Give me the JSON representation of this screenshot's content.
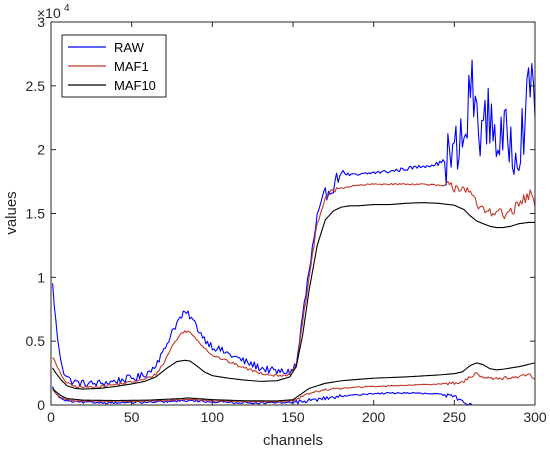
{
  "chart_data": {
    "type": "line",
    "xlabel": "channels",
    "ylabel": "values",
    "xlim": [
      0,
      300
    ],
    "ylim": [
      0,
      30000
    ],
    "xticks": [
      0,
      50,
      100,
      150,
      200,
      250,
      300
    ],
    "yticks": [
      0,
      5000,
      10000,
      15000,
      20000,
      25000,
      30000
    ],
    "xtick_labels": [
      "0",
      "50",
      "100",
      "150",
      "200",
      "250",
      "300"
    ],
    "ytick_labels": [
      "0",
      "0.5",
      "1",
      "1.5",
      "2",
      "2.5",
      "3"
    ],
    "y_multiplier": {
      "base": "×10",
      "exponent": "4"
    },
    "grid": false,
    "legend_position": "top-left",
    "legend": [
      "RAW",
      "MAF1",
      "MAF10"
    ],
    "colors": {
      "RAW": "#0000ff",
      "MAF1": "#c0392b",
      "MAF10": "#000000"
    },
    "series": [
      {
        "name": "RAW",
        "group": "upper",
        "noise": [
          300,
          150,
          2500
        ],
        "x": [
          1,
          3,
          5,
          8,
          12,
          18,
          25,
          35,
          45,
          55,
          62,
          70,
          75,
          80,
          83,
          86,
          90,
          95,
          100,
          110,
          120,
          130,
          140,
          148,
          152,
          155,
          160,
          165,
          170,
          175,
          180,
          185,
          190,
          200,
          210,
          220,
          230,
          240,
          248,
          252,
          256,
          258,
          260,
          262,
          264,
          268,
          272,
          276,
          280,
          284,
          288,
          292,
          296,
          298,
          300
        ],
        "y": [
          9400,
          6500,
          4200,
          2600,
          1900,
          1700,
          1650,
          1750,
          2000,
          2200,
          2700,
          4200,
          5800,
          6800,
          7200,
          7000,
          6200,
          5200,
          4600,
          4000,
          3400,
          2900,
          2600,
          2600,
          3000,
          6000,
          10500,
          14500,
          16500,
          17200,
          18300,
          18000,
          18000,
          18200,
          18300,
          18500,
          18700,
          18900,
          19400,
          19800,
          20800,
          22000,
          25500,
          24000,
          22500,
          21500,
          22800,
          21000,
          20500,
          21000,
          20200,
          21500,
          24000,
          26200,
          23800
        ]
      },
      {
        "name": "MAF1",
        "group": "upper",
        "noise": [
          100,
          60,
          450
        ],
        "x": [
          1,
          3,
          6,
          10,
          15,
          20,
          30,
          40,
          50,
          58,
          65,
          70,
          75,
          80,
          83,
          86,
          90,
          95,
          100,
          110,
          120,
          130,
          140,
          148,
          152,
          155,
          160,
          165,
          170,
          175,
          180,
          185,
          190,
          200,
          210,
          220,
          230,
          240,
          248,
          254,
          258,
          262,
          266,
          270,
          276,
          280,
          286,
          292,
          296,
          298,
          300
        ],
        "y": [
          3800,
          3200,
          2400,
          1700,
          1450,
          1400,
          1450,
          1600,
          1800,
          2000,
          2400,
          3300,
          4600,
          5500,
          5800,
          5700,
          5200,
          4500,
          3900,
          3400,
          2900,
          2500,
          2300,
          2400,
          3000,
          5500,
          10000,
          14200,
          16200,
          16800,
          17000,
          17100,
          17200,
          17300,
          17300,
          17300,
          17300,
          17200,
          17100,
          17100,
          17000,
          16000,
          15300,
          15200,
          15300,
          14800,
          15200,
          15900,
          16400,
          16500,
          15500
        ]
      },
      {
        "name": "MAF10",
        "group": "upper",
        "noise": [
          0,
          0,
          0
        ],
        "x": [
          1,
          3,
          6,
          10,
          15,
          20,
          30,
          40,
          50,
          58,
          65,
          72,
          78,
          83,
          86,
          90,
          95,
          100,
          110,
          120,
          130,
          140,
          148,
          152,
          156,
          160,
          165,
          170,
          175,
          180,
          185,
          190,
          200,
          210,
          220,
          230,
          240,
          250,
          256,
          260,
          264,
          268,
          272,
          276,
          280,
          285,
          290,
          296,
          300
        ],
        "y": [
          2900,
          2500,
          2000,
          1500,
          1300,
          1250,
          1300,
          1450,
          1650,
          1850,
          2200,
          2900,
          3400,
          3500,
          3450,
          3100,
          2600,
          2300,
          2100,
          1950,
          1850,
          1900,
          2200,
          3000,
          5500,
          9000,
          12500,
          14500,
          15200,
          15500,
          15600,
          15600,
          15700,
          15700,
          15800,
          15850,
          15800,
          15650,
          15300,
          14800,
          14400,
          14200,
          14000,
          13900,
          13900,
          14000,
          14200,
          14300,
          14300
        ]
      },
      {
        "name": "RAW",
        "group": "lower",
        "noise": [
          80,
          60,
          150
        ],
        "x": [
          1,
          3,
          6,
          10,
          20,
          40,
          60,
          80,
          85,
          100,
          120,
          140,
          150,
          160,
          175,
          190,
          200,
          220,
          240,
          250,
          255,
          258,
          260,
          262
        ],
        "y": [
          1400,
          900,
          500,
          300,
          200,
          180,
          200,
          300,
          350,
          250,
          180,
          150,
          200,
          350,
          600,
          800,
          900,
          950,
          850,
          650,
          300,
          100,
          30,
          0
        ]
      },
      {
        "name": "MAF1",
        "group": "lower",
        "noise": [
          40,
          40,
          120
        ],
        "x": [
          1,
          3,
          6,
          10,
          20,
          40,
          60,
          80,
          85,
          100,
          120,
          140,
          150,
          160,
          170,
          180,
          190,
          200,
          220,
          240,
          255,
          260,
          263,
          266,
          270,
          280,
          290,
          296,
          300
        ],
        "y": [
          1200,
          900,
          600,
          400,
          300,
          280,
          300,
          400,
          450,
          320,
          260,
          250,
          350,
          900,
          1200,
          1300,
          1400,
          1450,
          1550,
          1650,
          1750,
          2200,
          2500,
          2300,
          2100,
          2100,
          2200,
          2400,
          2100
        ]
      },
      {
        "name": "MAF10",
        "group": "lower",
        "noise": [
          0,
          0,
          0
        ],
        "x": [
          1,
          3,
          6,
          10,
          20,
          40,
          60,
          80,
          85,
          100,
          120,
          140,
          150,
          160,
          170,
          180,
          190,
          200,
          220,
          240,
          250,
          255,
          260,
          264,
          268,
          272,
          276,
          280,
          290,
          300
        ],
        "y": [
          1300,
          1050,
          750,
          500,
          380,
          350,
          380,
          500,
          550,
          420,
          330,
          320,
          420,
          1300,
          1700,
          1900,
          2000,
          2100,
          2200,
          2350,
          2450,
          2600,
          3100,
          3300,
          3150,
          2850,
          2750,
          2800,
          3000,
          3300
        ]
      }
    ]
  }
}
